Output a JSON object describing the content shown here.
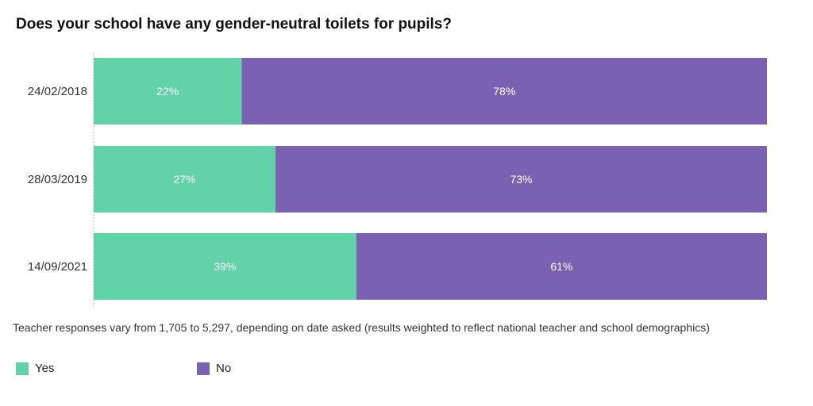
{
  "chart_data": {
    "type": "bar",
    "orientation": "horizontal",
    "stacked": true,
    "title": "Does your school have any gender-neutral toilets for pupils?",
    "categories": [
      "24/02/2018",
      "28/03/2019",
      "14/09/2021"
    ],
    "series": [
      {
        "name": "Yes",
        "color": "#62d2a9",
        "values": [
          22,
          27,
          39
        ],
        "labels": [
          "22%",
          "27%",
          "39%"
        ]
      },
      {
        "name": "No",
        "color": "#7a61b2",
        "values": [
          78,
          73,
          61
        ],
        "labels": [
          "78%",
          "73%",
          "61%"
        ]
      }
    ],
    "xlim": [
      0,
      100
    ],
    "xlabel": "",
    "ylabel": "",
    "legend_position": "bottom-left",
    "note": "Teacher responses vary from 1,705 to 5,297, depending on date asked (results weighted to reflect national teacher and school demographics)"
  }
}
